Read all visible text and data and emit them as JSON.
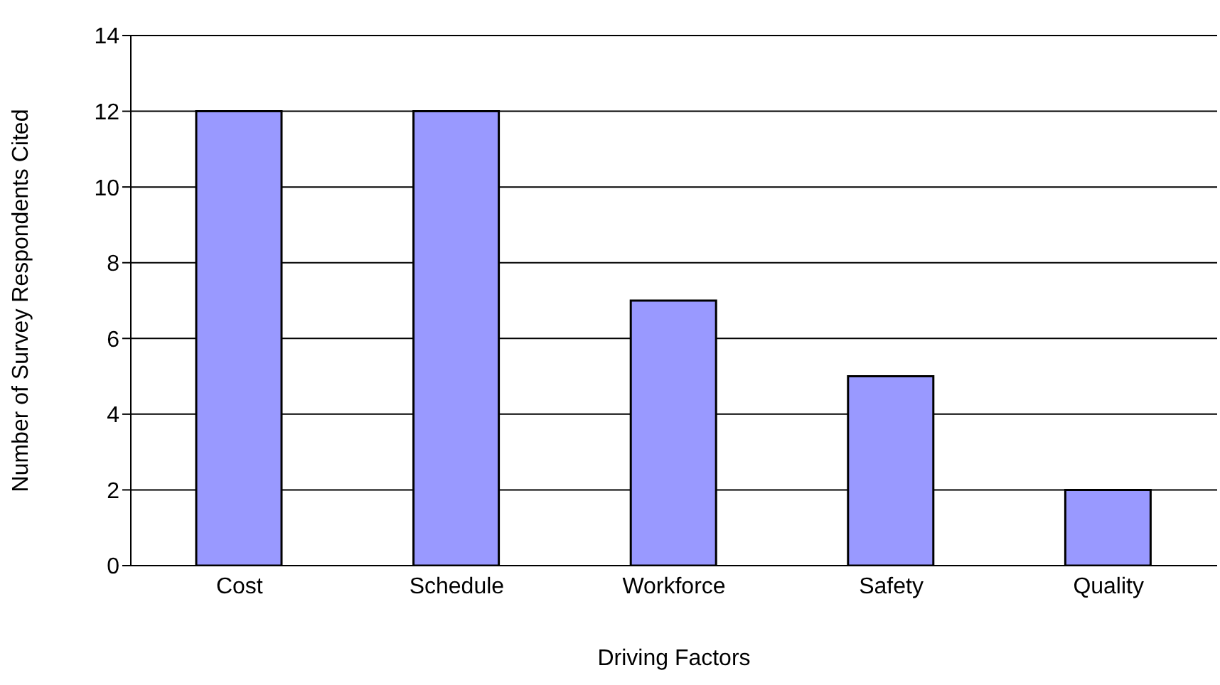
{
  "chart_data": {
    "type": "bar",
    "xlabel": "Driving Factors",
    "ylabel": "Number of Survey Respondents Cited",
    "categories": [
      "Cost",
      "Schedule",
      "Workforce",
      "Safety",
      "Quality"
    ],
    "values": [
      12,
      12,
      7,
      5,
      2
    ],
    "color": "#9999ff",
    "ylim": [
      0,
      14
    ],
    "yticks": [
      0,
      2,
      4,
      6,
      8,
      10,
      12,
      14
    ],
    "grid": "y"
  }
}
